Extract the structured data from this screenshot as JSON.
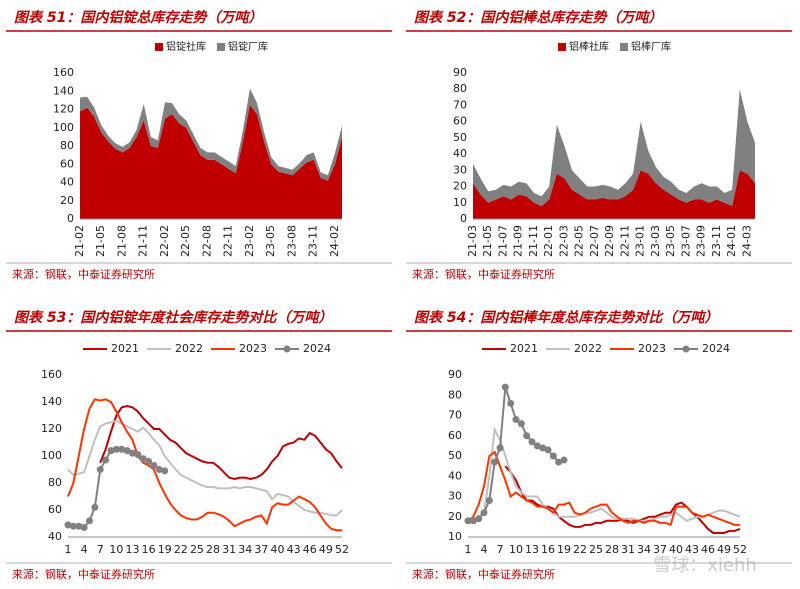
{
  "chart_data": [
    {
      "type": "area",
      "title": "图表 51：国内铝锭总库存走势（万吨）",
      "source": "来源：钢联，中泰证券研究所",
      "stacked": true,
      "grid": false,
      "categories": [
        "21-02",
        null,
        null,
        "21-05",
        null,
        null,
        "21-08",
        null,
        null,
        "21-11",
        null,
        null,
        "22-02",
        null,
        null,
        "22-05",
        null,
        null,
        "22-08",
        null,
        null,
        "22-11",
        null,
        null,
        "23-02",
        null,
        null,
        "23-05",
        null,
        null,
        "23-08",
        null,
        null,
        "23-11",
        null,
        null,
        "24-02",
        null
      ],
      "series": [
        {
          "name": "铝锭社库",
          "color": "#c00000",
          "values": [
            118,
            122,
            112,
            95,
            85,
            77,
            73,
            78,
            90,
            108,
            80,
            78,
            110,
            115,
            105,
            100,
            85,
            70,
            65,
            65,
            60,
            55,
            50,
            85,
            125,
            115,
            85,
            60,
            52,
            50,
            48,
            55,
            62,
            65,
            45,
            42,
            60,
            90
          ]
        },
        {
          "name": "铝锭厂库",
          "color": "#808080",
          "values": [
            15,
            12,
            10,
            8,
            6,
            6,
            6,
            6,
            8,
            18,
            10,
            8,
            18,
            12,
            10,
            8,
            8,
            8,
            8,
            8,
            8,
            8,
            8,
            12,
            18,
            12,
            10,
            8,
            6,
            6,
            6,
            6,
            8,
            8,
            6,
            6,
            12,
            12
          ]
        }
      ],
      "ylim": [
        0,
        160
      ],
      "yticks": [
        0,
        20,
        40,
        60,
        80,
        100,
        120,
        140,
        160
      ]
    },
    {
      "type": "area",
      "title": "图表 52：国内铝棒总库存走势（万吨）",
      "source": "来源：钢联，中泰证券研究所",
      "stacked": true,
      "grid": false,
      "categories": [
        "21-03",
        null,
        "21-05",
        null,
        "21-07",
        null,
        "21-09",
        null,
        "21-11",
        null,
        "22-01",
        null,
        "22-03",
        null,
        "22-05",
        null,
        "22-07",
        null,
        "22-09",
        null,
        "22-11",
        null,
        "23-01",
        null,
        "23-03",
        null,
        "23-05",
        null,
        "23-07",
        null,
        "23-09",
        null,
        "23-11",
        null,
        "24-01",
        null,
        "24-03",
        null
      ],
      "series": [
        {
          "name": "铝棒社库",
          "color": "#c00000",
          "values": [
            22,
            15,
            10,
            12,
            14,
            12,
            15,
            14,
            10,
            8,
            12,
            28,
            25,
            18,
            15,
            12,
            12,
            13,
            12,
            12,
            14,
            18,
            30,
            28,
            22,
            18,
            15,
            12,
            10,
            12,
            12,
            10,
            12,
            10,
            8,
            30,
            28,
            22
          ]
        },
        {
          "name": "铝棒厂库",
          "color": "#808080",
          "values": [
            12,
            10,
            7,
            6,
            7,
            8,
            8,
            8,
            6,
            6,
            8,
            30,
            20,
            12,
            10,
            8,
            8,
            8,
            8,
            6,
            8,
            10,
            30,
            14,
            10,
            8,
            8,
            6,
            6,
            8,
            10,
            10,
            8,
            6,
            10,
            50,
            32,
            25
          ]
        }
      ],
      "ylim": [
        0,
        90
      ],
      "yticks": [
        0,
        10,
        20,
        30,
        40,
        50,
        60,
        70,
        80,
        90
      ]
    },
    {
      "type": "line",
      "title": "图表 53：国内铝锭年度社会库存走势对比（万吨）",
      "source": "来源：钢联，中泰证券研究所",
      "grid": false,
      "x": [
        1,
        2,
        3,
        4,
        5,
        6,
        7,
        8,
        9,
        10,
        11,
        12,
        13,
        14,
        15,
        16,
        17,
        18,
        19,
        20,
        21,
        22,
        23,
        24,
        25,
        26,
        27,
        28,
        29,
        30,
        31,
        32,
        33,
        34,
        35,
        36,
        37,
        38,
        39,
        40,
        41,
        42,
        43,
        44,
        45,
        46,
        47,
        48,
        49,
        50,
        51,
        52
      ],
      "series": [
        {
          "name": "2021",
          "color": "#c00000",
          "values": [
            null,
            null,
            null,
            null,
            null,
            null,
            95,
            105,
            118,
            130,
            136,
            137,
            136,
            133,
            128,
            124,
            120,
            120,
            116,
            112,
            110,
            106,
            102,
            100,
            98,
            96,
            95,
            95,
            92,
            88,
            84,
            83,
            84,
            84,
            83,
            84,
            86,
            90,
            96,
            100,
            107,
            109,
            110,
            113,
            112,
            117,
            115,
            110,
            105,
            102,
            96,
            91
          ]
        },
        {
          "name": "2022",
          "color": "#bfbfbf",
          "values": [
            90,
            86,
            87,
            88,
            100,
            112,
            122,
            124,
            125,
            126,
            124,
            122,
            120,
            118,
            121,
            117,
            112,
            108,
            100,
            95,
            90,
            86,
            84,
            82,
            80,
            78,
            77,
            77,
            76,
            76,
            76,
            77,
            76,
            77,
            77,
            76,
            75,
            74,
            68,
            72,
            71,
            70,
            66,
            63,
            60,
            59,
            58,
            58,
            57,
            56,
            56,
            60
          ]
        },
        {
          "name": "2023",
          "color": "#ff3300",
          "values": [
            70,
            80,
            100,
            120,
            135,
            142,
            141,
            142,
            140,
            133,
            125,
            118,
            112,
            100,
            95,
            93,
            90,
            80,
            72,
            65,
            60,
            56,
            54,
            53,
            53,
            55,
            58,
            58,
            57,
            55,
            52,
            48,
            50,
            52,
            53,
            55,
            56,
            50,
            62,
            65,
            64,
            64,
            67,
            70,
            68,
            66,
            62,
            56,
            50,
            46,
            45,
            45
          ]
        },
        {
          "name": "2024",
          "color": "#808080",
          "marker": true,
          "values": [
            49,
            48,
            48,
            47,
            52,
            62,
            90,
            97,
            104,
            105,
            105,
            104,
            102,
            101,
            98,
            96,
            93,
            90,
            89,
            null,
            null,
            null,
            null,
            null,
            null,
            null,
            null,
            null,
            null,
            null,
            null,
            null,
            null,
            null,
            null,
            null,
            null,
            null,
            null,
            null,
            null,
            null,
            null,
            null,
            null,
            null,
            null,
            null,
            null,
            null,
            null,
            null
          ]
        }
      ],
      "xlim": [
        1,
        52
      ],
      "xticks": [
        1,
        4,
        7,
        10,
        13,
        16,
        19,
        22,
        25,
        28,
        31,
        34,
        37,
        40,
        43,
        46,
        49,
        52
      ],
      "ylim": [
        40,
        160
      ],
      "yticks": [
        40,
        60,
        80,
        100,
        120,
        140,
        160
      ]
    },
    {
      "type": "line",
      "title": "图表 54：国内铝棒年度总库存走势对比（万吨）",
      "source": "来源：钢联，中泰证券研究所",
      "grid": false,
      "x": [
        1,
        2,
        3,
        4,
        5,
        6,
        7,
        8,
        9,
        10,
        11,
        12,
        13,
        14,
        15,
        16,
        17,
        18,
        19,
        20,
        21,
        22,
        23,
        24,
        25,
        26,
        27,
        28,
        29,
        30,
        31,
        32,
        33,
        34,
        35,
        36,
        37,
        38,
        39,
        40,
        41,
        42,
        43,
        44,
        45,
        46,
        47,
        48,
        49,
        50,
        51,
        52
      ],
      "series": [
        {
          "name": "2021",
          "color": "#c00000",
          "values": [
            null,
            null,
            null,
            null,
            null,
            null,
            null,
            45,
            42,
            38,
            32,
            28,
            28,
            26,
            25,
            25,
            24,
            20,
            18,
            16,
            15,
            15,
            16,
            16,
            17,
            17,
            18,
            18,
            18,
            19,
            18,
            17,
            18,
            19,
            20,
            20,
            21,
            22,
            22,
            26,
            27,
            25,
            22,
            20,
            17,
            14,
            12,
            12,
            12,
            13,
            13,
            14
          ]
        },
        {
          "name": "2022",
          "color": "#bfbfbf",
          "values": [
            18,
            18,
            20,
            22,
            40,
            63,
            58,
            50,
            42,
            35,
            32,
            30,
            30,
            30,
            26,
            24,
            22,
            20,
            20,
            20,
            20,
            21,
            22,
            22,
            23,
            24,
            22,
            20,
            19,
            19,
            19,
            19,
            18,
            18,
            18,
            19,
            20,
            20,
            21,
            22,
            20,
            18,
            19,
            20,
            20,
            21,
            22,
            23,
            23,
            22,
            21,
            20
          ]
        },
        {
          "name": "2023",
          "color": "#ff3300",
          "values": [
            18,
            20,
            26,
            35,
            50,
            52,
            45,
            38,
            30,
            32,
            30,
            28,
            27,
            25,
            25,
            24,
            22,
            26,
            26,
            27,
            22,
            21,
            22,
            24,
            25,
            26,
            26,
            22,
            20,
            18,
            17,
            18,
            18,
            17,
            18,
            18,
            17,
            17,
            16,
            25,
            25,
            25,
            22,
            21,
            20,
            21,
            20,
            19,
            18,
            17,
            16,
            16
          ]
        },
        {
          "name": "2024",
          "color": "#808080",
          "marker": true,
          "values": [
            18,
            18,
            19,
            22,
            28,
            47,
            54,
            84,
            76,
            68,
            66,
            60,
            57,
            55,
            54,
            53,
            50,
            47,
            48,
            null,
            null,
            null,
            null,
            null,
            null,
            null,
            null,
            null,
            null,
            null,
            null,
            null,
            null,
            null,
            null,
            null,
            null,
            null,
            null,
            null,
            null,
            null,
            null,
            null,
            null,
            null,
            null,
            null,
            null,
            null,
            null,
            null
          ]
        }
      ],
      "xlim": [
        1,
        52
      ],
      "xticks": [
        1,
        4,
        7,
        10,
        13,
        16,
        19,
        22,
        25,
        28,
        31,
        34,
        37,
        40,
        43,
        46,
        49,
        52
      ],
      "ylim": [
        10,
        90
      ],
      "yticks": [
        10,
        20,
        30,
        40,
        50,
        60,
        70,
        80,
        90
      ]
    }
  ],
  "watermark": "雪球：xiehh"
}
